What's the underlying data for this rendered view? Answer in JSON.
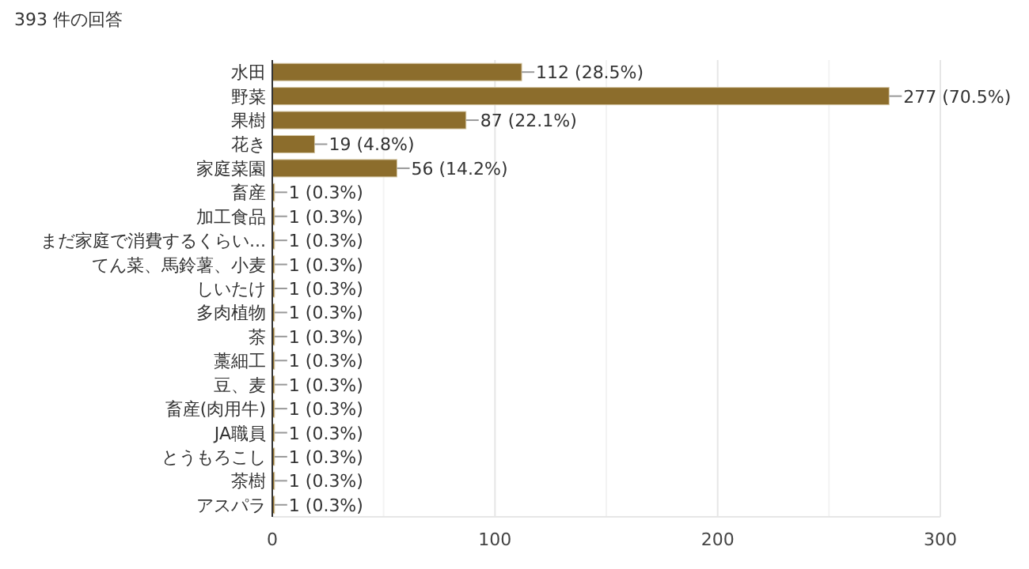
{
  "chart_data": {
    "type": "bar",
    "orientation": "horizontal",
    "title": "393 件の回答",
    "categories": [
      "水田",
      "野菜",
      "果樹",
      "花き",
      "家庭菜園",
      "畜産",
      "加工食品",
      "まだ家庭で消費するくらい...",
      "てん菜、馬鈴薯、小麦",
      "しいたけ",
      "多肉植物",
      "茶",
      "藁細工",
      "豆、麦",
      "畜産(肉用牛)",
      "JA職員",
      "とうもろこし",
      "茶樹",
      "アスパラ"
    ],
    "values": [
      112,
      277,
      87,
      19,
      56,
      1,
      1,
      1,
      1,
      1,
      1,
      1,
      1,
      1,
      1,
      1,
      1,
      1,
      1
    ],
    "value_labels": [
      "112 (28.5%)",
      "277 (70.5%)",
      "87 (22.1%)",
      "19 (4.8%)",
      "56 (14.2%)",
      "1 (0.3%)",
      "1 (0.3%)",
      "1 (0.3%)",
      "1 (0.3%)",
      "1 (0.3%)",
      "1 (0.3%)",
      "1 (0.3%)",
      "1 (0.3%)",
      "1 (0.3%)",
      "1 (0.3%)",
      "1 (0.3%)",
      "1 (0.3%)",
      "1 (0.3%)",
      "1 (0.3%)"
    ],
    "color": "#8c6d2c",
    "xlim": [
      0,
      300
    ],
    "xticks": [
      0,
      {
        "value": 50,
        "label": null
      },
      100,
      {
        "value": 150,
        "label": null
      },
      200,
      {
        "value": 250,
        "label": null
      },
      300
    ],
    "grid": "x"
  }
}
